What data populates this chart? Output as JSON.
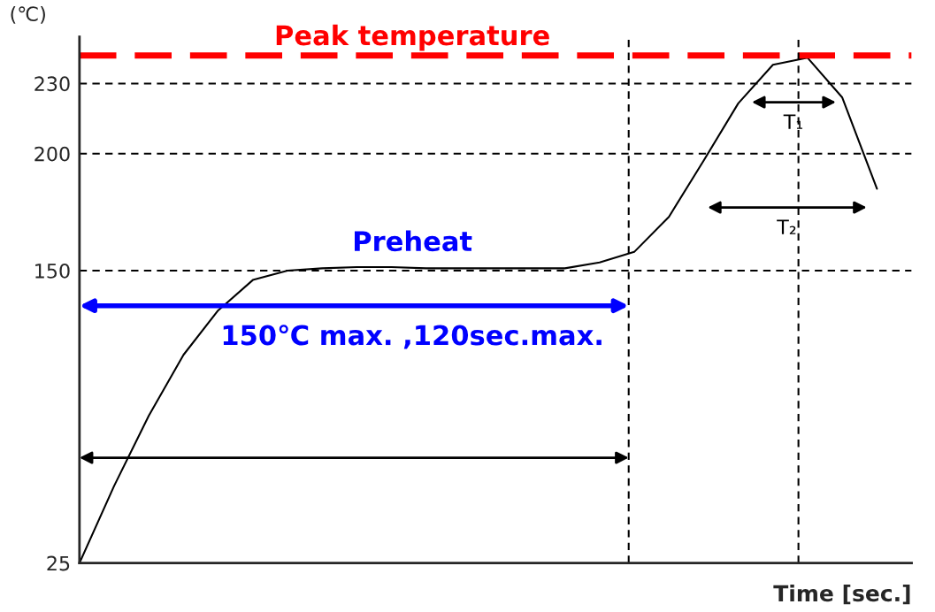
{
  "chart_data": {
    "type": "line",
    "xlabel": "Time [sec.]",
    "ylabel": "(℃)",
    "categories": [
      null,
      null,
      null,
      null,
      null,
      null,
      null,
      null,
      null,
      null,
      null,
      null,
      null,
      null,
      null,
      null,
      null,
      null,
      null,
      null,
      null,
      null,
      null,
      null
    ],
    "series": [
      {
        "color": "#000000",
        "values": [
          25,
          58,
          88,
          114,
          133,
          146,
          150,
          151,
          151.5,
          151.5,
          151,
          151,
          151,
          151,
          151,
          153.5,
          158,
          173,
          197,
          221.5,
          238,
          241,
          224,
          185
        ]
      }
    ],
    "ylim": [
      25,
      250
    ],
    "yticks": [
      25,
      150,
      200,
      230
    ],
    "tick_labels": "y",
    "grid": false,
    "ref_lines": [
      {
        "axis": "y",
        "value": 150,
        "color": "#000000",
        "line_style": "dashed"
      },
      {
        "axis": "y",
        "value": 200,
        "color": "#000000",
        "line_style": "dashed"
      },
      {
        "axis": "y",
        "value": 230,
        "color": "#000000",
        "line_style": "dashed"
      },
      {
        "axis": "y",
        "value": 242,
        "label": "Peak temperature",
        "color": "#ff0000",
        "line_style": "dashed"
      }
    ],
    "annotations": [
      "Preheat",
      "150℃ max. ,120sec.max.",
      "T₁",
      "T₂"
    ]
  }
}
